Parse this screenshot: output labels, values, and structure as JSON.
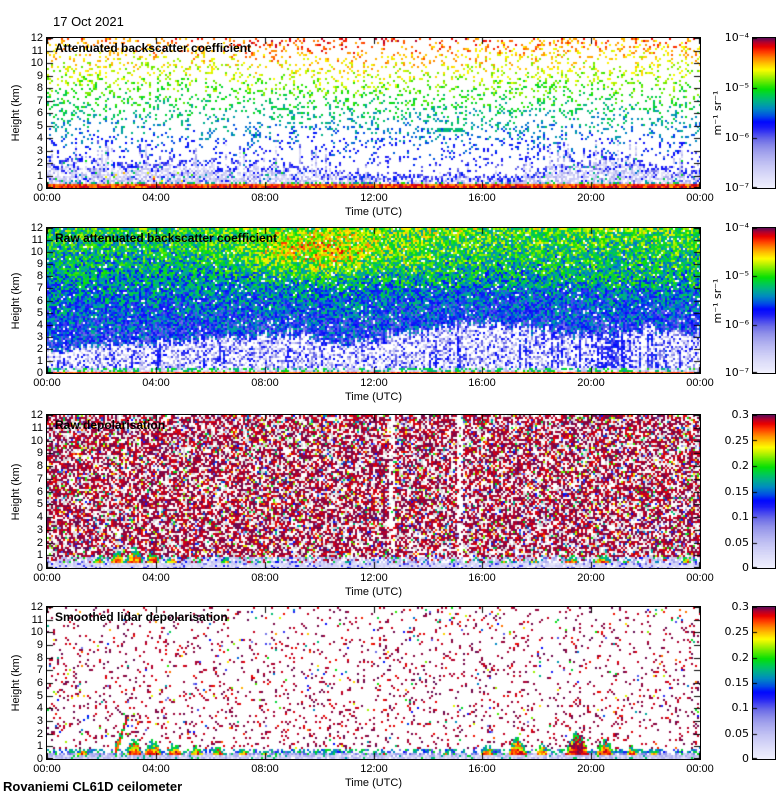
{
  "header": {
    "date": "17 Oct 2021"
  },
  "footer": {
    "instrument": "Rovaniemi CL61D ceilometer"
  },
  "chart_data": {
    "type": "heatmap",
    "title": "CL61D ceilometer quicklooks, 17 Oct 2021, Rovaniemi",
    "x": {
      "label": "Time (UTC)",
      "ticks": [
        "00:00",
        "04:00",
        "08:00",
        "12:00",
        "16:00",
        "20:00",
        "00:00"
      ],
      "range_hours": [
        0,
        24
      ],
      "grid": false
    },
    "y": {
      "label": "Height (km)",
      "ticks": [
        0,
        1,
        2,
        3,
        4,
        5,
        6,
        7,
        8,
        9,
        10,
        11,
        12
      ],
      "range_km": [
        0,
        12
      ],
      "grid": false
    },
    "colormap_stops": [
      [
        0.0,
        "#f0f0fd"
      ],
      [
        0.07,
        "#dedef9"
      ],
      [
        0.14,
        "#c9c9f5"
      ],
      [
        0.21,
        "#aeaeef"
      ],
      [
        0.27,
        "#9090e9"
      ],
      [
        0.32,
        "#6d6de7"
      ],
      [
        0.36,
        "#4646ef"
      ],
      [
        0.4,
        "#1b1bf7"
      ],
      [
        0.44,
        "#0008ff"
      ],
      [
        0.48,
        "#004fe4"
      ],
      [
        0.53,
        "#008cc0"
      ],
      [
        0.58,
        "#00b386"
      ],
      [
        0.62,
        "#00cd4b"
      ],
      [
        0.66,
        "#06e006"
      ],
      [
        0.71,
        "#66ea00"
      ],
      [
        0.76,
        "#c8f400"
      ],
      [
        0.79,
        "#fdfd00"
      ],
      [
        0.83,
        "#ffc400"
      ],
      [
        0.87,
        "#ff8400"
      ],
      [
        0.91,
        "#ff3a00"
      ],
      [
        0.945,
        "#e90000"
      ],
      [
        0.975,
        "#b2002e"
      ],
      [
        1.0,
        "#620b52"
      ]
    ],
    "panels": [
      {
        "title": "Attenuated backscatter coefficient",
        "colorbar": {
          "scale": "log",
          "ticks": [
            "10^-4",
            "10^-5",
            "10^-6",
            "10^-7"
          ],
          "unit": "m^-1 sr^-1",
          "range": [
            "1e-7",
            "1e-4"
          ]
        },
        "summary": "Sparse noise speckle whose value grows with height (blue 2-4 km, green 4-6, yellow 6-9, orange/red 9-12 km, reddest near 06:00-16:00 aloft); pale lavender aerosol layer below ~2 km with blue spikes, deepening to ~3.5 km at 19:00-21:30; solid red surface-return band below ~0.3 km; short green cloud streak near 14:30-15:30 at ~4.6 km.",
        "render": {
          "mode": "backscatter_sparse",
          "seed": 11,
          "dot": 2,
          "haze_profile": [
            [
              0,
              2.1
            ],
            [
              8,
              2.0
            ],
            [
              10,
              1.3
            ],
            [
              13,
              0.95
            ],
            [
              17.5,
              1.0
            ],
            [
              19,
              2.3
            ],
            [
              21.5,
              2.3
            ],
            [
              22.5,
              1.5
            ],
            [
              24,
              1.5
            ]
          ],
          "spike_frac": 0.12,
          "free_density": [
            0.05,
            0.19
          ],
          "t_low": 0.4,
          "t_per_km": 0.048,
          "jitter": 0.075,
          "warm_center": {
            "x": 11,
            "sx": 5,
            "boost": 0.06
          },
          "surface_km": 0.26,
          "dash": {
            "x0": 14.3,
            "x1": 15.3,
            "h": 4.6
          }
        }
      },
      {
        "title": "Raw attenuated backscatter coefficient",
        "colorbar": {
          "scale": "log",
          "ticks": [
            "10^-4",
            "10^-5",
            "10^-6",
            "10^-7"
          ],
          "unit": "m^-1 sr^-1",
          "range": [
            "1e-7",
            "1e-4"
          ]
        },
        "summary": "Dense photon noise: green aloft grading to blue then white below a boundary that rises from ~2 km at 00:00 to ~4 km near 16:00; orange/yellow noise patch 06:00-13:00 above 8 km; blue vertical streaks piercing the white low region; thin green+red surface band below ~0.4 km.",
        "render": {
          "mode": "raw_dense",
          "seed": 22,
          "dot": 2,
          "white_profile": [
            [
              0,
              1.8
            ],
            [
              3,
              2.4
            ],
            [
              6,
              2.8
            ],
            [
              9,
              3.3
            ],
            [
              11,
              2.4
            ],
            [
              13,
              3.2
            ],
            [
              16,
              4.2
            ],
            [
              18,
              3.6
            ],
            [
              20,
              3.0
            ],
            [
              22,
              3.6
            ],
            [
              24,
              3.2
            ]
          ],
          "top_t": [
            0.42,
            0.64
          ],
          "jitter": 0.14,
          "blob": {
            "x": 10,
            "sx": 3.2,
            "h": 10,
            "sh": 2.2,
            "boost": 0.26
          },
          "streak_frac": 0.1,
          "streak_t": [
            0.32,
            0.47
          ],
          "tall_streak_zone": [
            18.5,
            21.5
          ],
          "surface_km": 0.4
        }
      },
      {
        "title": "Raw depolarisation",
        "colorbar": {
          "scale": "linear",
          "ticks": [
            "0.3",
            "0.25",
            "0.2",
            "0.15",
            "0.1",
            "0.05",
            "0"
          ],
          "unit": "",
          "range": [
            0,
            0.3
          ]
        },
        "summary": "Dense purple/maroon depolarisation noise filling the whole profile with scattered colourful flecks; depolarising streaks (green edges, red/orange cores) below ~1.5 km mainly 02:00-05:00 and 17:00-21:30; pale low-depolarisation lavender layer below ~0.3 km.",
        "render": {
          "mode": "depol_speckle",
          "seed": 33,
          "dot": 2,
          "purple_frac": 0.5,
          "color_frac": 0.09,
          "gray_frac": 0.13,
          "band_km": 0.9,
          "base_km": 0.32,
          "gaps": [
            12.7,
            15.2
          ],
          "features": [
            {
              "x": 1.9,
              "w": 0.5,
              "h": 0.9
            },
            {
              "x": 2.6,
              "w": 0.6,
              "h": 1.3
            },
            {
              "x": 3.2,
              "w": 0.7,
              "h": 1.5
            },
            {
              "x": 3.9,
              "w": 0.6,
              "h": 1.2
            },
            {
              "x": 4.6,
              "w": 0.5,
              "h": 0.9
            },
            {
              "x": 5.6,
              "w": 0.4,
              "h": 0.6
            },
            {
              "x": 6.6,
              "w": 0.5,
              "h": 0.7
            },
            {
              "x": 7.8,
              "w": 0.4,
              "h": 0.5
            },
            {
              "x": 9.3,
              "w": 0.3,
              "h": 0.4
            },
            {
              "x": 13.1,
              "w": 0.4,
              "h": 0.4
            },
            {
              "x": 16.8,
              "w": 0.5,
              "h": 0.6
            },
            {
              "x": 17.9,
              "w": 0.6,
              "h": 0.7
            },
            {
              "x": 19.3,
              "w": 0.7,
              "h": 0.9
            },
            {
              "x": 20.4,
              "w": 0.8,
              "h": 1.0
            },
            {
              "x": 21.3,
              "w": 0.5,
              "h": 0.7
            },
            {
              "x": 23.5,
              "w": 0.4,
              "h": 0.9
            }
          ]
        }
      },
      {
        "title": "Smoothed lidar depolarisation",
        "colorbar": {
          "scale": "linear",
          "ticks": [
            "0.3",
            "0.25",
            "0.2",
            "0.15",
            "0.1",
            "0.05",
            "0"
          ],
          "unit": "",
          "range": [
            0,
            0.3
          ]
        },
        "summary": "Mostly clear (white) with sparse purple residual noise; smoothed depolarising layer below ~1 km (lavender-blue base, green edges, red/orange cores); inclined high-depolarisation streak 02:30-03:30 rising to ~3.3 km; bump clusters 03:00-08:00 and 16:00-21:30 reaching ~2 km with purple patch near 19:30.",
        "render": {
          "mode": "depol_smooth",
          "seed": 44,
          "dot": 2,
          "purple_frac": 0.09,
          "color_frac": 0.012,
          "band_km": 0.55,
          "base_km": 0.3,
          "features": [
            {
              "x": 1.3,
              "w": 0.5,
              "h": 0.8
            },
            {
              "x": 2.55,
              "w": 0.4,
              "h": 3.3,
              "diag": 1
            },
            {
              "x": 3.2,
              "w": 0.6,
              "h": 1.6
            },
            {
              "x": 3.9,
              "w": 0.7,
              "h": 1.4
            },
            {
              "x": 4.7,
              "w": 0.6,
              "h": 1.2
            },
            {
              "x": 5.5,
              "w": 0.5,
              "h": 1.0
            },
            {
              "x": 6.3,
              "w": 0.5,
              "h": 0.9
            },
            {
              "x": 7.2,
              "w": 0.4,
              "h": 0.8
            },
            {
              "x": 8.0,
              "w": 0.3,
              "h": 0.6
            },
            {
              "x": 10.5,
              "w": 0.4,
              "h": 0.5
            },
            {
              "x": 12.4,
              "w": 0.3,
              "h": 0.5
            },
            {
              "x": 14.7,
              "w": 0.4,
              "h": 0.6
            },
            {
              "x": 16.2,
              "w": 0.6,
              "h": 1.0
            },
            {
              "x": 17.3,
              "w": 0.7,
              "h": 1.7
            },
            {
              "x": 18.2,
              "w": 0.5,
              "h": 1.1
            },
            {
              "x": 19.5,
              "w": 0.9,
              "h": 2.0,
              "purple": 1
            },
            {
              "x": 20.5,
              "w": 0.7,
              "h": 1.5
            },
            {
              "x": 21.5,
              "w": 0.5,
              "h": 1.0
            },
            {
              "x": 22.3,
              "w": 0.4,
              "h": 0.7
            }
          ]
        }
      }
    ]
  }
}
